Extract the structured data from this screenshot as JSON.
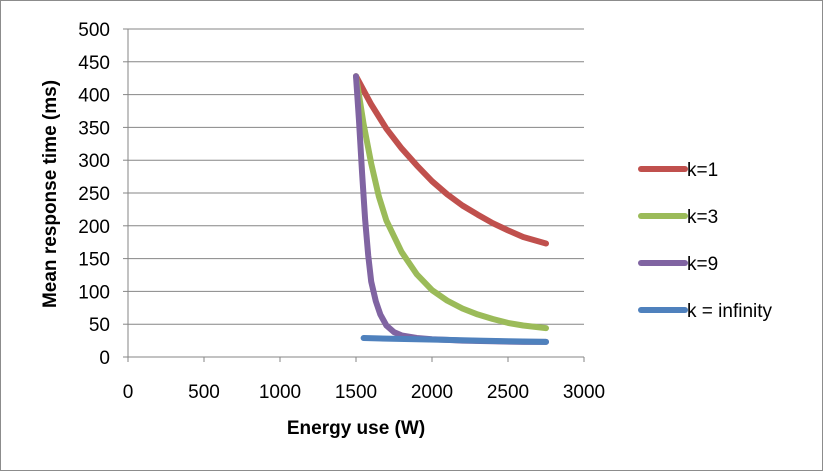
{
  "chart_data": {
    "type": "line",
    "xlabel": "Energy use (W)",
    "ylabel": "Mean response time (ms)",
    "xlim": [
      0,
      3000
    ],
    "ylim": [
      0,
      500
    ],
    "x_ticks": [
      "0",
      "500",
      "1000",
      "1500",
      "2000",
      "2500",
      "3000"
    ],
    "y_ticks": [
      "0",
      "50",
      "100",
      "150",
      "200",
      "250",
      "300",
      "350",
      "400",
      "450",
      "500"
    ],
    "grid": "horizontal",
    "legend_position": "right",
    "series": [
      {
        "name": "k=1",
        "color": "#c0504d",
        "points": [
          [
            1500,
            428
          ],
          [
            1600,
            385
          ],
          [
            1700,
            348
          ],
          [
            1800,
            318
          ],
          [
            1900,
            292
          ],
          [
            2000,
            268
          ],
          [
            2100,
            248
          ],
          [
            2200,
            231
          ],
          [
            2300,
            217
          ],
          [
            2400,
            204
          ],
          [
            2500,
            193
          ],
          [
            2600,
            183
          ],
          [
            2750,
            173
          ]
        ]
      },
      {
        "name": "k=3",
        "color": "#9bbb59",
        "points": [
          [
            1500,
            428
          ],
          [
            1550,
            355
          ],
          [
            1600,
            295
          ],
          [
            1650,
            245
          ],
          [
            1700,
            208
          ],
          [
            1800,
            160
          ],
          [
            1900,
            126
          ],
          [
            2000,
            102
          ],
          [
            2100,
            86
          ],
          [
            2200,
            74
          ],
          [
            2300,
            65
          ],
          [
            2400,
            58
          ],
          [
            2500,
            52
          ],
          [
            2600,
            48
          ],
          [
            2750,
            44
          ]
        ]
      },
      {
        "name": "k=9",
        "color": "#8064a2",
        "points": [
          [
            1500,
            428
          ],
          [
            1520,
            360
          ],
          [
            1540,
            280
          ],
          [
            1560,
            210
          ],
          [
            1580,
            155
          ],
          [
            1600,
            115
          ],
          [
            1630,
            85
          ],
          [
            1660,
            65
          ],
          [
            1700,
            48
          ],
          [
            1750,
            38
          ],
          [
            1800,
            33
          ],
          [
            1900,
            29
          ],
          [
            2000,
            27
          ],
          [
            2100,
            26
          ],
          [
            2200,
            25
          ],
          [
            2400,
            24
          ],
          [
            2600,
            23
          ],
          [
            2750,
            23
          ]
        ]
      },
      {
        "name": "k = infinity",
        "color": "#4f81bd",
        "points": [
          [
            1550,
            29
          ],
          [
            1700,
            28
          ],
          [
            1900,
            27
          ],
          [
            2100,
            26
          ],
          [
            2300,
            25
          ],
          [
            2500,
            24
          ],
          [
            2750,
            23
          ]
        ]
      }
    ]
  }
}
